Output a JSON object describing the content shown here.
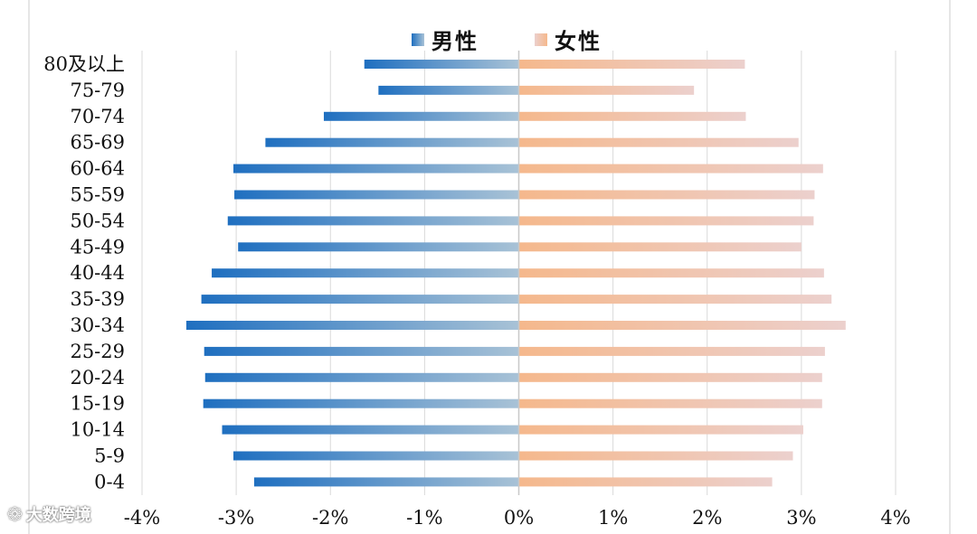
{
  "legend": {
    "male_label": "男性",
    "female_label": "女性"
  },
  "watermark": {
    "text": "大数跨境"
  },
  "colors": {
    "male_dark": "#1f6fc0",
    "male_light": "#a8c2d6",
    "female_dark": "#f5b88c",
    "female_light": "#ecd0cd",
    "grid": "#d9d9d9",
    "axis": "#c8c8c8"
  },
  "chart_data": {
    "type": "bar",
    "orientation": "horizontal",
    "subtype": "population-pyramid",
    "categories": [
      "80及以上",
      "75-79",
      "70-74",
      "65-69",
      "60-64",
      "55-59",
      "50-54",
      "45-49",
      "40-44",
      "35-39",
      "30-34",
      "25-29",
      "20-24",
      "15-19",
      "10-14",
      "5-9",
      "0-4"
    ],
    "series": [
      {
        "name": "男性",
        "values": [
          -1.64,
          -1.49,
          -2.07,
          -2.69,
          -3.03,
          -3.02,
          -3.09,
          -2.98,
          -3.26,
          -3.37,
          -3.53,
          -3.34,
          -3.33,
          -3.35,
          -3.15,
          -3.03,
          -2.81
        ]
      },
      {
        "name": "女性",
        "values": [
          2.4,
          1.86,
          2.41,
          2.97,
          3.23,
          3.14,
          3.13,
          3.0,
          3.24,
          3.32,
          3.47,
          3.25,
          3.22,
          3.22,
          3.02,
          2.91,
          2.69
        ]
      }
    ],
    "xlim": [
      -4,
      4
    ],
    "xticks": [
      -4,
      -3,
      -2,
      -1,
      0,
      1,
      2,
      3,
      4
    ],
    "xtick_labels": [
      "-4%",
      "-3%",
      "-2%",
      "-1%",
      "0%",
      "1%",
      "2%",
      "3%",
      "4%"
    ],
    "grid": true,
    "legend_position": "top-center",
    "title": "",
    "xlabel": "",
    "ylabel": ""
  }
}
